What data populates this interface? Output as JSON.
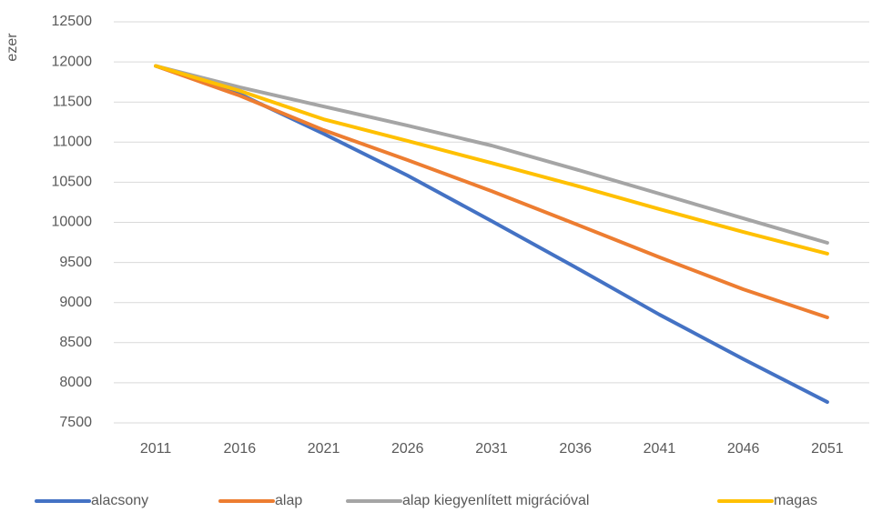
{
  "chart_data": {
    "type": "line",
    "y_label": "ezer",
    "categories": [
      "2011",
      "2016",
      "2021",
      "2026",
      "2031",
      "2036",
      "2041",
      "2046",
      "2051"
    ],
    "series": [
      {
        "name": "alacsony",
        "color": "#4472c4",
        "values": [
          11950,
          11600,
          11105,
          10584,
          10017,
          9440,
          8850,
          8295,
          7760
        ]
      },
      {
        "name": "alap",
        "color": "#ed7d31",
        "values": [
          11950,
          11580,
          11150,
          10777,
          10390,
          9980,
          9565,
          9165,
          8815
        ]
      },
      {
        "name": "alap kiegyenlített migrációval",
        "color": "#a5a5a5",
        "values": [
          11950,
          11684,
          11445,
          11207,
          10958,
          10663,
          10357,
          10050,
          9745
        ]
      },
      {
        "name": "magas",
        "color": "#ffc000",
        "values": [
          11950,
          11640,
          11285,
          11015,
          10740,
          10460,
          10165,
          9880,
          9610
        ]
      }
    ],
    "ylim": [
      7500,
      12500
    ],
    "yticks": [
      7500,
      8000,
      8500,
      9000,
      9500,
      10000,
      10500,
      11000,
      11500,
      12000,
      12500
    ],
    "grid": true,
    "legend": "bottom"
  }
}
